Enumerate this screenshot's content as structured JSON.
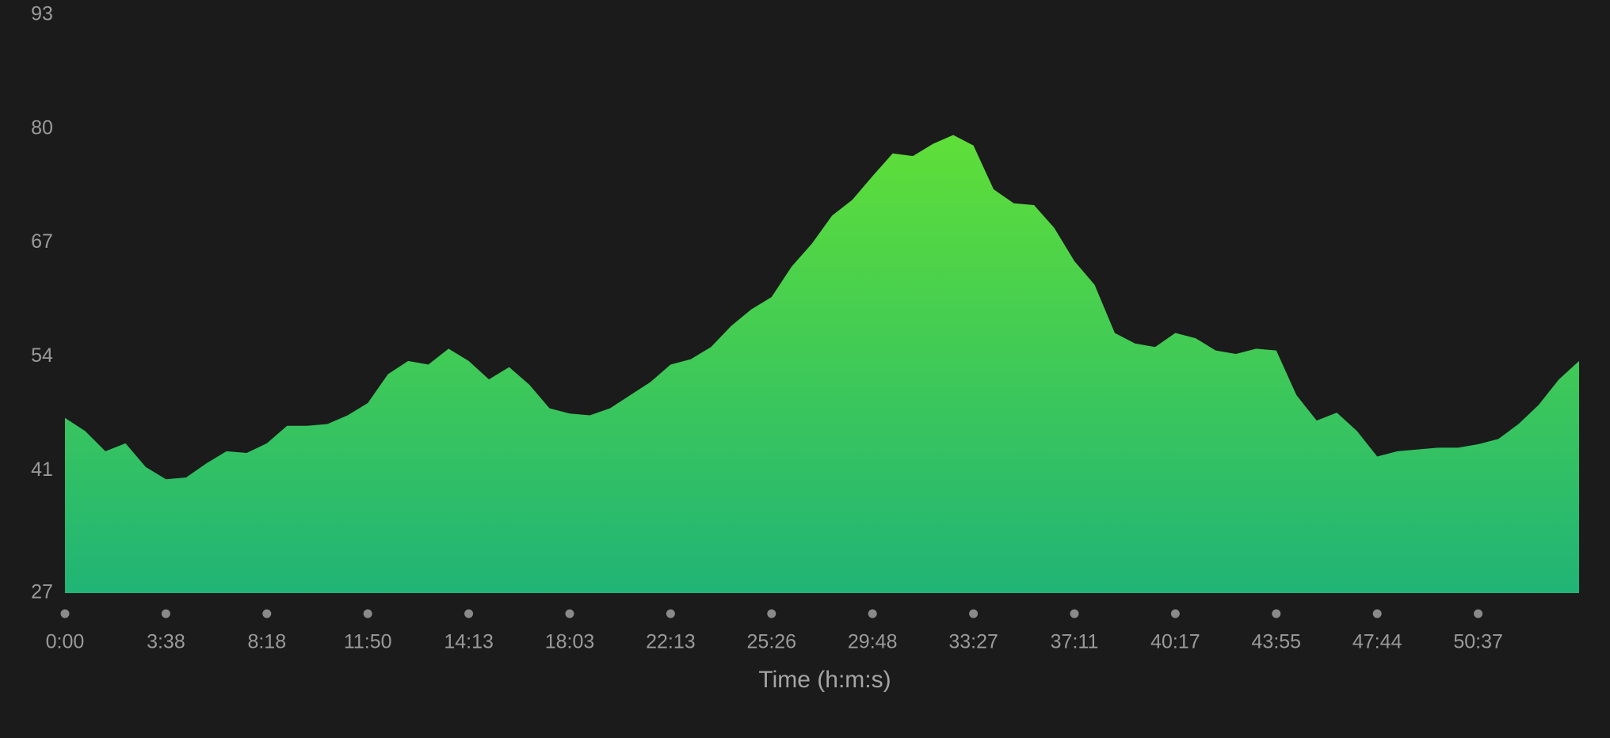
{
  "chart_data": {
    "type": "area",
    "x_label": "Time (h:m:s)",
    "categories": [
      "0:00",
      null,
      null,
      null,
      null,
      "3:38",
      null,
      null,
      null,
      null,
      "8:18",
      null,
      null,
      null,
      null,
      "11:50",
      null,
      null,
      null,
      null,
      "14:13",
      null,
      null,
      null,
      null,
      "18:03",
      null,
      null,
      null,
      null,
      "22:13",
      null,
      null,
      null,
      null,
      "25:26",
      null,
      null,
      null,
      null,
      "29:48",
      null,
      null,
      null,
      null,
      "33:27",
      null,
      null,
      null,
      null,
      "37:11",
      null,
      null,
      null,
      null,
      "40:17",
      null,
      null,
      null,
      null,
      "43:55",
      null,
      null,
      null,
      null,
      "47:44",
      null,
      null,
      null,
      null,
      "50:37",
      null,
      null,
      null,
      null,
      null
    ],
    "values": [
      47,
      45.5,
      43.2,
      44.1,
      41.4,
      40,
      40.2,
      41.8,
      43.2,
      43,
      44.1,
      46.1,
      46.1,
      46.3,
      47.3,
      48.7,
      52,
      53.5,
      53.1,
      54.9,
      53.5,
      51.4,
      52.8,
      50.8,
      48.1,
      47.5,
      47.3,
      48.1,
      49.6,
      51.1,
      53.1,
      53.7,
      55.1,
      57.5,
      59.4,
      60.8,
      64.3,
      66.9,
      70.1,
      71.9,
      74.6,
      77.2,
      76.9,
      78.3,
      79.3,
      78.1,
      73.1,
      71.5,
      71.3,
      68.7,
      64.9,
      62.2,
      56.7,
      55.5,
      55.1,
      56.7,
      56.1,
      54.7,
      54.3,
      54.9,
      54.7,
      49.6,
      46.7,
      47.6,
      45.5,
      42.6,
      43.2,
      43.4,
      43.6,
      43.6,
      44,
      44.6,
      46.3,
      48.5,
      51.4,
      53.5
    ],
    "color_top": "#5fdf38",
    "color_bottom": "#20b476",
    "ylim": [
      27,
      93
    ],
    "yticks": [
      27,
      41,
      54,
      67,
      80,
      93
    ]
  }
}
